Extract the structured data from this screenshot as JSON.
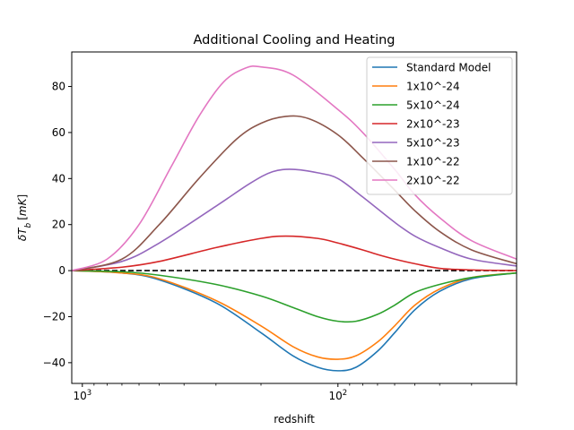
{
  "chart_data": {
    "type": "line",
    "title": "Additional Cooling and Heating",
    "xlabel": "redshift",
    "ylabel": "δT_b [mK]",
    "x_scale": "log",
    "x_inverted": true,
    "xlim": [
      1100,
      20
    ],
    "ylim": [
      -49,
      95
    ],
    "x_ticks": [
      {
        "value": 1000,
        "base": "10",
        "exp": "3"
      },
      {
        "value": 100,
        "base": "10",
        "exp": "2"
      }
    ],
    "y_ticks": [
      -40,
      -20,
      0,
      20,
      40,
      60,
      80
    ],
    "reference_line": {
      "y": 0,
      "style": "dashed",
      "color": "#000000"
    },
    "grid": false,
    "legend": {
      "position": "top-right"
    },
    "series": [
      {
        "name": "Standard Model",
        "color": "#1f77b4",
        "x": [
          1100,
          700,
          500,
          300,
          200,
          150,
          120,
          100,
          85,
          70,
          60,
          50,
          40,
          30,
          20
        ],
        "y": [
          0,
          -1,
          -4,
          -14,
          -27,
          -37,
          -42,
          -43.5,
          -42,
          -35,
          -27,
          -17,
          -9,
          -3.5,
          -1
        ]
      },
      {
        "name": "1x10^-24",
        "color": "#ff7f0e",
        "x": [
          1100,
          700,
          500,
          300,
          200,
          150,
          120,
          100,
          85,
          70,
          60,
          50,
          40,
          30,
          20
        ],
        "y": [
          0,
          -1,
          -3.5,
          -13,
          -24,
          -33,
          -37.5,
          -38.5,
          -37,
          -31,
          -24,
          -15,
          -8,
          -3,
          -1
        ]
      },
      {
        "name": "5x10^-24",
        "color": "#2ca02c",
        "x": [
          1100,
          700,
          500,
          300,
          200,
          150,
          120,
          100,
          85,
          70,
          60,
          50,
          40,
          30,
          20
        ],
        "y": [
          0,
          -0.5,
          -2,
          -6,
          -11,
          -16,
          -20,
          -22,
          -22,
          -19,
          -15,
          -9.5,
          -6,
          -3,
          -1
        ]
      },
      {
        "name": "2x10^-23",
        "color": "#d62728",
        "x": [
          1100,
          700,
          500,
          300,
          200,
          160,
          120,
          100,
          80,
          70,
          60,
          50,
          40,
          30,
          20
        ],
        "y": [
          0,
          1.5,
          4,
          10,
          14,
          15,
          14,
          12,
          9,
          7,
          5,
          3,
          1,
          0.3,
          0
        ]
      },
      {
        "name": "5x10^-23",
        "color": "#9467bd",
        "x": [
          1100,
          700,
          500,
          300,
          220,
          180,
          150,
          120,
          100,
          80,
          60,
          50,
          40,
          30,
          20
        ],
        "y": [
          0,
          4,
          12,
          28,
          38,
          43,
          44,
          42.5,
          40,
          32,
          21,
          15,
          10,
          5,
          2
        ]
      },
      {
        "name": "1x10^-22",
        "color": "#8c564b",
        "x": [
          1100,
          700,
          500,
          350,
          250,
          200,
          160,
          130,
          100,
          80,
          60,
          50,
          40,
          30,
          20
        ],
        "y": [
          0,
          5,
          20,
          40,
          57,
          64,
          67,
          66,
          59,
          49,
          35,
          26,
          17,
          9,
          3
        ]
      },
      {
        "name": "2x10^-22",
        "color": "#e377c2",
        "x": [
          1100,
          800,
          600,
          450,
          350,
          280,
          230,
          200,
          150,
          100,
          80,
          60,
          50,
          40,
          30,
          20
        ],
        "y": [
          0,
          5,
          20,
          45,
          67,
          82,
          88,
          88.5,
          85,
          70,
          60,
          44,
          33,
          23,
          13,
          5
        ]
      }
    ]
  }
}
